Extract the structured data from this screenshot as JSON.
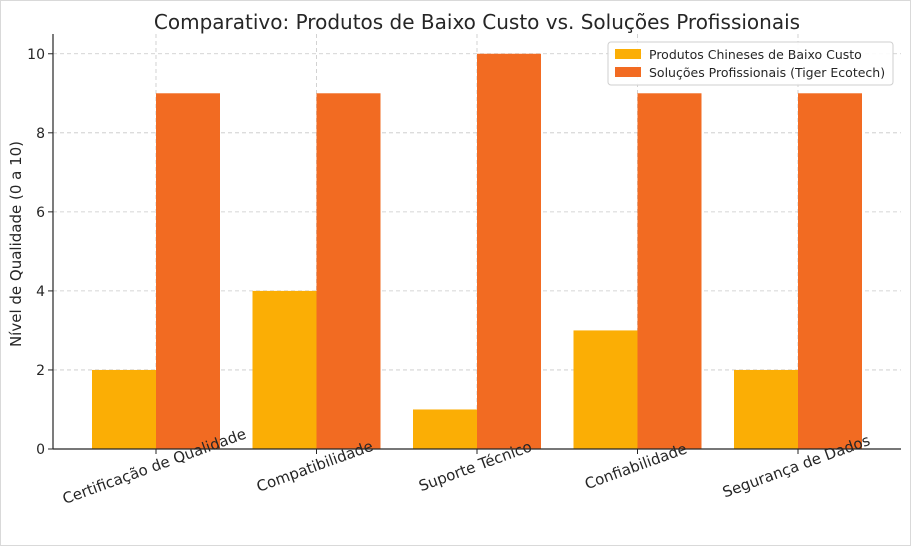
{
  "chart_data": {
    "type": "bar",
    "title": "Comparativo: Produtos de Baixo Custo vs. Soluções Profissionais",
    "xlabel": "",
    "ylabel": "Nível de Qualidade (0 a 10)",
    "ylim": [
      0,
      10.5
    ],
    "yticks": [
      0,
      2,
      4,
      6,
      8,
      10
    ],
    "grid": true,
    "legend_position": "top-right",
    "categories": [
      "Certificação de Qualidade",
      "Compatibilidade",
      "Suporte Técnico",
      "Confiabilidade",
      "Segurança de Dados"
    ],
    "series": [
      {
        "name": "Produtos Chineses de Baixo Custo",
        "color": "#FBAE05",
        "values": [
          2,
          4,
          1,
          3,
          2
        ]
      },
      {
        "name": "Soluções Profissionais (Tiger Ecotech)",
        "color": "#F26B22",
        "values": [
          9,
          9,
          10,
          9,
          9
        ]
      }
    ]
  }
}
